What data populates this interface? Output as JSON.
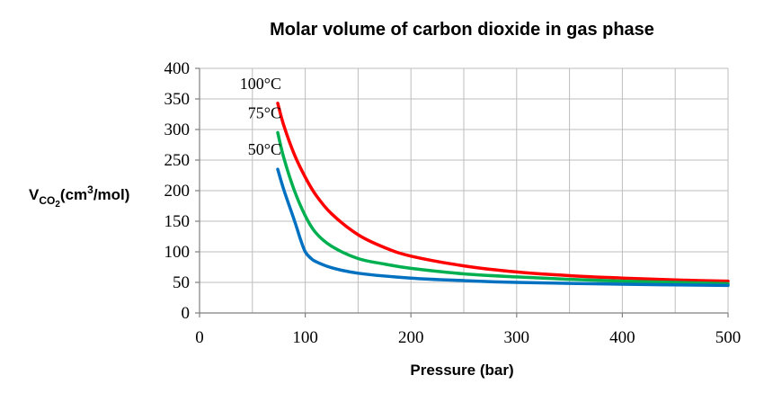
{
  "chart_data": {
    "type": "line",
    "title": "Molar volume of carbon dioxide in gas phase",
    "xlabel": "Pressure (bar)",
    "ylabel": {
      "prefix": "V",
      "subscript_main": "CO",
      "subscript_sub": "2",
      "unit_open": "(cm",
      "unit_sup": "3",
      "unit_close": "/mol)"
    },
    "xlim": [
      0,
      500
    ],
    "ylim": [
      0,
      400
    ],
    "x_ticks": [
      "0",
      "100",
      "200",
      "300",
      "400",
      "500"
    ],
    "y_ticks": [
      "0",
      "50",
      "100",
      "150",
      "200",
      "250",
      "300",
      "350",
      "400"
    ],
    "x_grid_step": 50,
    "y_grid_step": 50,
    "grid": true,
    "series": [
      {
        "name": "100°C",
        "color": "#ff0000",
        "x": [
          74,
          80,
          90,
          100,
          110,
          125,
          150,
          175,
          200,
          250,
          300,
          350,
          400,
          450,
          500
        ],
        "y": [
          343,
          305,
          258,
          222,
          193,
          162,
          128,
          107,
          93,
          77,
          67,
          61,
          57,
          54,
          52
        ]
      },
      {
        "name": "75°C",
        "color": "#00b050",
        "x": [
          74,
          80,
          90,
          100,
          110,
          125,
          150,
          175,
          200,
          250,
          300,
          350,
          400,
          450,
          500
        ],
        "y": [
          295,
          252,
          199,
          159,
          131,
          109,
          89,
          80,
          73,
          64,
          59,
          55,
          52,
          50,
          48
        ]
      },
      {
        "name": "50°C",
        "color": "#0070c0",
        "x": [
          74,
          80,
          90,
          95,
          100,
          105,
          110,
          125,
          150,
          200,
          250,
          300,
          400,
          500
        ],
        "y": [
          235,
          200,
          150,
          123,
          100,
          90,
          84,
          74,
          65,
          57,
          53,
          50,
          47,
          45
        ]
      }
    ]
  }
}
